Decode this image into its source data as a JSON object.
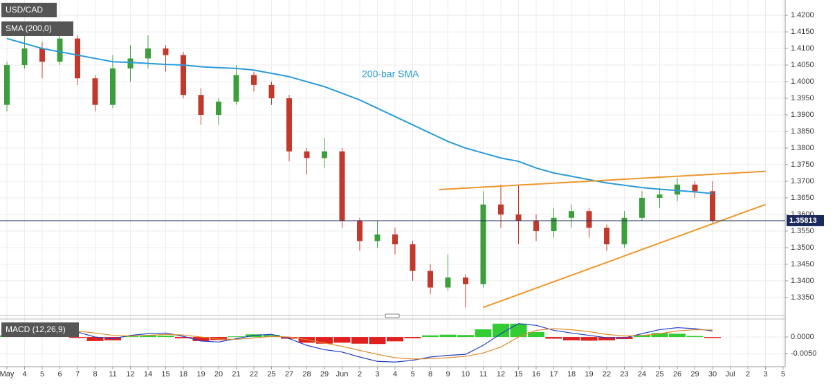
{
  "chart_data": {
    "type": "candlestick",
    "title": "USD/CAD",
    "categories": [
      "May",
      "4",
      "5",
      "6",
      "7",
      "8",
      "11",
      "12",
      "14",
      "15",
      "18",
      "19",
      "20",
      "21",
      "22",
      "25",
      "27",
      "28",
      "29",
      "Jun",
      "2",
      "3",
      "4",
      "5",
      "8",
      "9",
      "10",
      "11",
      "12",
      "15",
      "16",
      "17",
      "18",
      "19",
      "22",
      "23",
      "24",
      "25",
      "26",
      "29",
      "30",
      "Jul",
      "2",
      "3",
      "5"
    ],
    "open": [
      1.393,
      1.405,
      1.41,
      1.406,
      1.413,
      1.401,
      1.393,
      1.404,
      1.407,
      1.41,
      1.408,
      1.396,
      1.39,
      1.394,
      1.402,
      1.399,
      1.395,
      1.379,
      1.377,
      1.379,
      1.358,
      1.352,
      1.354,
      1.351,
      1.343,
      1.338,
      1.341,
      1.339,
      1.363,
      1.36,
      1.358,
      1.355,
      1.359,
      1.361,
      1.356,
      1.351,
      1.359,
      1.365,
      1.366,
      1.369,
      1.367,
      null,
      null,
      null,
      null
    ],
    "high": [
      1.406,
      1.415,
      1.412,
      1.417,
      1.414,
      1.402,
      1.408,
      1.411,
      1.414,
      1.411,
      1.409,
      1.398,
      1.395,
      1.405,
      1.403,
      1.4,
      1.396,
      1.38,
      1.383,
      1.38,
      1.359,
      1.358,
      1.356,
      1.352,
      1.345,
      1.348,
      1.342,
      1.367,
      1.369,
      1.369,
      1.36,
      1.362,
      1.363,
      1.362,
      1.357,
      1.361,
      1.367,
      1.368,
      1.371,
      1.37,
      1.37,
      null,
      null,
      null,
      null
    ],
    "low": [
      1.391,
      1.404,
      1.401,
      1.405,
      1.399,
      1.391,
      1.392,
      1.4,
      1.404,
      1.403,
      1.395,
      1.387,
      1.387,
      1.393,
      1.397,
      1.393,
      1.376,
      1.372,
      1.374,
      1.356,
      1.349,
      1.35,
      1.348,
      1.34,
      1.336,
      1.337,
      1.332,
      1.338,
      1.356,
      1.351,
      1.352,
      1.353,
      1.356,
      1.353,
      1.349,
      1.35,
      1.358,
      1.362,
      1.364,
      1.365,
      1.357,
      null,
      null,
      null,
      null
    ],
    "close": [
      1.405,
      1.41,
      1.406,
      1.413,
      1.401,
      1.393,
      1.404,
      1.407,
      1.41,
      1.408,
      1.396,
      1.39,
      1.394,
      1.402,
      1.399,
      1.395,
      1.379,
      1.377,
      1.379,
      1.358,
      1.352,
      1.354,
      1.351,
      1.343,
      1.338,
      1.341,
      1.339,
      1.363,
      1.36,
      1.358,
      1.355,
      1.359,
      1.361,
      1.356,
      1.351,
      1.359,
      1.365,
      1.366,
      1.369,
      1.367,
      1.3581,
      null,
      null,
      null,
      null
    ],
    "up_color": "#3c9e3c",
    "down_color": "#c0392b",
    "ylim": [
      1.3304,
      1.4246
    ],
    "yticks": [
      {
        "value": 1.42,
        "label": "1.4200"
      },
      {
        "value": 1.415,
        "label": "1.4150"
      },
      {
        "value": 1.41,
        "label": "1.4100"
      },
      {
        "value": 1.405,
        "label": "1.4050"
      },
      {
        "value": 1.4,
        "label": "1.4000"
      },
      {
        "value": 1.395,
        "label": "1.3950"
      },
      {
        "value": 1.39,
        "label": "1.3900"
      },
      {
        "value": 1.385,
        "label": "1.3850"
      },
      {
        "value": 1.38,
        "label": "1.3800"
      },
      {
        "value": 1.375,
        "label": "1.3750"
      },
      {
        "value": 1.37,
        "label": "1.3700"
      },
      {
        "value": 1.365,
        "label": "1.3650"
      },
      {
        "value": 1.36,
        "label": "1.3600"
      },
      {
        "value": 1.355,
        "label": "1.3550"
      },
      {
        "value": 1.35,
        "label": "1.3500"
      },
      {
        "value": 1.345,
        "label": "1.3450"
      },
      {
        "value": 1.34,
        "label": "1.3400"
      },
      {
        "value": 1.335,
        "label": "1.3350"
      }
    ],
    "grid": true,
    "sma": {
      "name": "SMA (200,0)",
      "annotation": "200-bar SMA",
      "color": "#2a9bd8",
      "values": [
        1.413,
        1.4115,
        1.41,
        1.409,
        1.408,
        1.407,
        1.406,
        1.4058,
        1.4055,
        1.4052,
        1.405,
        1.4045,
        1.4042,
        1.404,
        1.4035,
        1.4025,
        1.4015,
        1.4,
        1.3985,
        1.3965,
        1.3945,
        1.392,
        1.3895,
        1.387,
        1.3845,
        1.382,
        1.38,
        1.3785,
        1.377,
        1.376,
        1.374,
        1.3725,
        1.3715,
        1.3705,
        1.3695,
        1.3688,
        1.3681,
        1.3676,
        1.3672,
        1.3668,
        1.3663,
        null,
        null,
        null,
        null
      ]
    },
    "trendlines": [
      {
        "color": "#f0962a",
        "x": [
          24.5,
          43
        ],
        "y": [
          1.3675,
          1.373
        ]
      },
      {
        "color": "#f0962a",
        "x": [
          27,
          43
        ],
        "y": [
          1.332,
          1.363
        ]
      }
    ],
    "last_price": 1.35813,
    "macd": {
      "name": "MACD (12,26,9)",
      "ylim": [
        -0.0089,
        0.0052
      ],
      "yticks": [
        {
          "value": 0,
          "label": "0.0000"
        },
        {
          "value": -0.005,
          "label": "-0.0050"
        }
      ],
      "macd_line": {
        "color": "#1f3fc4",
        "values": [
          0.0015,
          0.0025,
          0.002,
          0.0025,
          0.0015,
          0.0,
          -0.0005,
          0.0005,
          0.001,
          0.0012,
          0.0002,
          -0.0012,
          -0.0015,
          -0.0005,
          0.0005,
          0.0008,
          -0.0005,
          -0.0025,
          -0.0038,
          -0.0045,
          -0.006,
          -0.0073,
          -0.0075,
          -0.007,
          -0.006,
          -0.0055,
          -0.0052,
          -0.0025,
          0.001,
          0.004,
          0.0035,
          0.002,
          0.0012,
          0.0005,
          -0.0002,
          -0.0003,
          0.001,
          0.0022,
          0.0028,
          0.0025,
          0.0018,
          null,
          null,
          null,
          null
        ]
      },
      "signal_line": {
        "color": "#e08a2c",
        "values": [
          0.001,
          0.0015,
          0.0018,
          0.002,
          0.0018,
          0.0012,
          0.0005,
          0.0003,
          0.0005,
          0.0008,
          0.0006,
          0.0,
          -0.0006,
          -0.0007,
          -0.0003,
          0.0002,
          0.0,
          -0.0008,
          -0.0018,
          -0.0028,
          -0.004,
          -0.0052,
          -0.0062,
          -0.0066,
          -0.0065,
          -0.0062,
          -0.0058,
          -0.0048,
          -0.003,
          0.0,
          0.002,
          0.0025,
          0.0022,
          0.0016,
          0.0008,
          0.0003,
          0.0004,
          0.001,
          0.0018,
          0.0022,
          0.0021,
          null,
          null,
          null,
          null
        ]
      },
      "histogram": {
        "up_color": "#33cc33",
        "down_color": "#e02020",
        "values": [
          0.0005,
          0.001,
          0.0002,
          0.0005,
          -0.0003,
          -0.0012,
          -0.001,
          0.0002,
          0.0005,
          0.0004,
          -0.0004,
          -0.0012,
          -0.0009,
          0.0002,
          0.0008,
          0.0006,
          -0.0005,
          -0.0017,
          -0.002,
          -0.0017,
          -0.002,
          -0.0021,
          -0.0013,
          -0.0004,
          0.0005,
          0.0007,
          0.0006,
          0.0023,
          0.004,
          0.004,
          0.0015,
          -0.0005,
          -0.001,
          -0.0011,
          -0.001,
          -0.0006,
          0.0006,
          0.0012,
          0.001,
          0.0003,
          -0.0003,
          null,
          null,
          null,
          null
        ]
      }
    }
  }
}
